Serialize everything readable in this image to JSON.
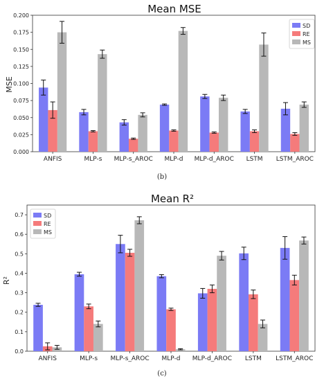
{
  "chart_data": [
    {
      "type": "bar",
      "title": "Mean MSE",
      "xlabel": "",
      "ylabel": "MSE",
      "ylim": [
        0,
        0.2
      ],
      "yticks": [
        "0.000",
        "0.025",
        "0.050",
        "0.075",
        "0.100",
        "0.125",
        "0.150",
        "0.175",
        "0.200"
      ],
      "ytick_values": [
        0,
        0.025,
        0.05,
        0.075,
        0.1,
        0.125,
        0.15,
        0.175,
        0.2
      ],
      "categories": [
        "ANFIS",
        "MLP-s",
        "MLP-s_AROC",
        "MLP-d",
        "MLP-d_AROC",
        "LSTM",
        "LSTM_AROC"
      ],
      "legend_position": "top-right",
      "caption": "(b)",
      "series": [
        {
          "name": "SD",
          "color": "#7b7bf5",
          "values": [
            0.094,
            0.058,
            0.043,
            0.069,
            0.081,
            0.059,
            0.063
          ],
          "errors": [
            0.011,
            0.004,
            0.004,
            0.001,
            0.003,
            0.003,
            0.009
          ]
        },
        {
          "name": "RE",
          "color": "#f57b7b",
          "values": [
            0.061,
            0.03,
            0.019,
            0.031,
            0.028,
            0.03,
            0.026
          ],
          "errors": [
            0.012,
            0.001,
            0.001,
            0.001,
            0.001,
            0.002,
            0.002
          ]
        },
        {
          "name": "MS",
          "color": "#b8b8b8",
          "values": [
            0.175,
            0.143,
            0.054,
            0.177,
            0.079,
            0.157,
            0.069
          ],
          "errors": [
            0.016,
            0.006,
            0.003,
            0.005,
            0.004,
            0.017,
            0.004
          ]
        }
      ]
    },
    {
      "type": "bar",
      "title": "Mean R²",
      "xlabel": "",
      "ylabel": "R²",
      "ylim": [
        0,
        0.75
      ],
      "yticks": [
        "0.0",
        "0.1",
        "0.2",
        "0.3",
        "0.4",
        "0.5",
        "0.6",
        "0.7"
      ],
      "ytick_values": [
        0,
        0.1,
        0.2,
        0.3,
        0.4,
        0.5,
        0.6,
        0.7
      ],
      "categories": [
        "ANFIS",
        "MLP-s",
        "MLP-s_AROC",
        "MLP-d",
        "MLP-d_AROC",
        "LSTM",
        "LSTM_AROC"
      ],
      "legend_position": "top-left",
      "caption": "(c)",
      "series": [
        {
          "name": "SD",
          "color": "#7b7bf5",
          "values": [
            0.238,
            0.395,
            0.55,
            0.385,
            0.297,
            0.502,
            0.53
          ],
          "errors": [
            0.008,
            0.01,
            0.045,
            0.008,
            0.025,
            0.032,
            0.058
          ]
        },
        {
          "name": "RE",
          "color": "#f57b7b",
          "values": [
            0.025,
            0.23,
            0.505,
            0.215,
            0.32,
            0.292,
            0.365
          ],
          "errors": [
            0.018,
            0.012,
            0.018,
            0.006,
            0.02,
            0.022,
            0.025
          ]
        },
        {
          "name": "MS",
          "color": "#b8b8b8",
          "values": [
            0.02,
            0.14,
            0.672,
            0.01,
            0.49,
            0.14,
            0.568
          ],
          "errors": [
            0.01,
            0.015,
            0.018,
            0.003,
            0.022,
            0.02,
            0.018
          ]
        }
      ]
    }
  ]
}
